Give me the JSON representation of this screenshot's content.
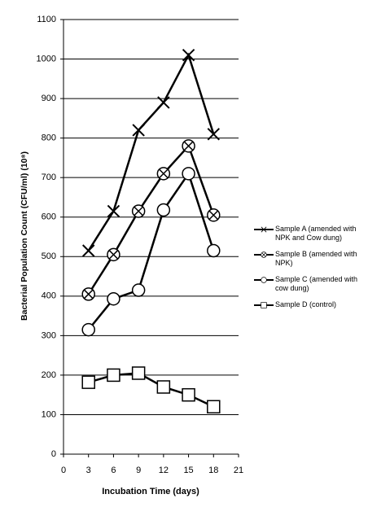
{
  "chart_data": {
    "type": "line",
    "x_label": "Incubation Time (days)",
    "y_label": "Bacterial Population Count (CFU/ml) (10⁸)",
    "x": [
      3,
      6,
      9,
      12,
      15,
      18
    ],
    "xlim": [
      0,
      21
    ],
    "xticks": [
      0,
      3,
      6,
      9,
      12,
      15,
      18,
      21
    ],
    "ylim": [
      0,
      1100
    ],
    "yticks": [
      0,
      100,
      200,
      300,
      400,
      500,
      600,
      700,
      800,
      900,
      1000,
      1100
    ],
    "grid": true,
    "series": [
      {
        "name": "Sample A (amended with NPK and Cow dung)",
        "color": "#000000",
        "marker": "x",
        "values": [
          515,
          615,
          820,
          890,
          1010,
          810
        ]
      },
      {
        "name": "Sample B (amended with NPK)",
        "color": "#000000",
        "marker": "circle-x",
        "values": [
          405,
          505,
          615,
          710,
          780,
          605
        ]
      },
      {
        "name": "Sample C (amended with cow dung)",
        "color": "#000000",
        "marker": "circle",
        "values": [
          315,
          393,
          415,
          618,
          710,
          515
        ]
      },
      {
        "name": "Sample D (control)",
        "color": "#000000",
        "marker": "square",
        "values": [
          182,
          200,
          205,
          170,
          150,
          120
        ]
      }
    ]
  }
}
